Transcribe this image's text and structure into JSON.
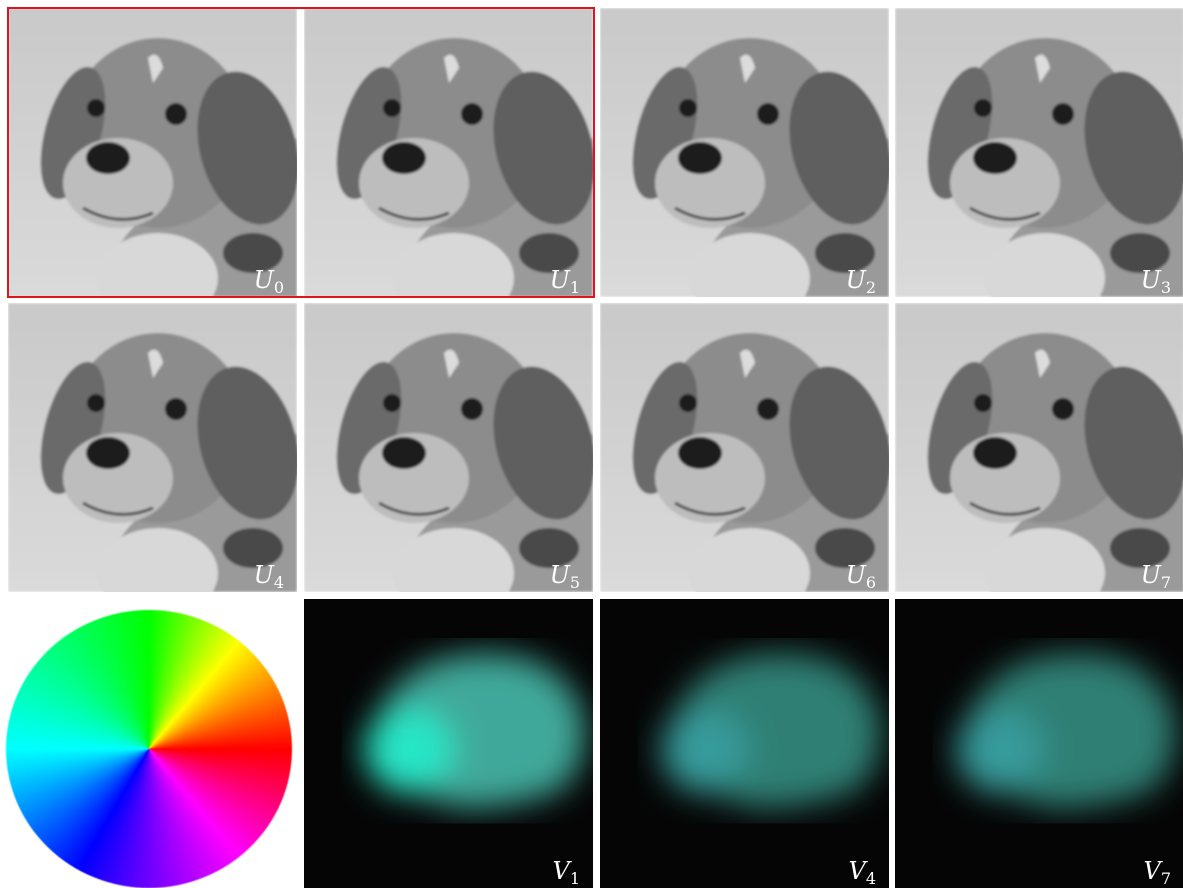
{
  "panels": [
    {
      "kind": "image",
      "symbol": "U",
      "subscript": "0"
    },
    {
      "kind": "image",
      "symbol": "U",
      "subscript": "1"
    },
    {
      "kind": "image",
      "symbol": "U",
      "subscript": "2"
    },
    {
      "kind": "image",
      "symbol": "U",
      "subscript": "3"
    },
    {
      "kind": "image",
      "symbol": "U",
      "subscript": "4"
    },
    {
      "kind": "image",
      "symbol": "U",
      "subscript": "5"
    },
    {
      "kind": "image",
      "symbol": "U",
      "subscript": "6"
    },
    {
      "kind": "image",
      "symbol": "U",
      "subscript": "7"
    },
    {
      "kind": "wheel"
    },
    {
      "kind": "flow",
      "symbol": "V",
      "subscript": "1"
    },
    {
      "kind": "flow",
      "symbol": "V",
      "subscript": "4"
    },
    {
      "kind": "flow",
      "symbol": "V",
      "subscript": "7"
    }
  ]
}
